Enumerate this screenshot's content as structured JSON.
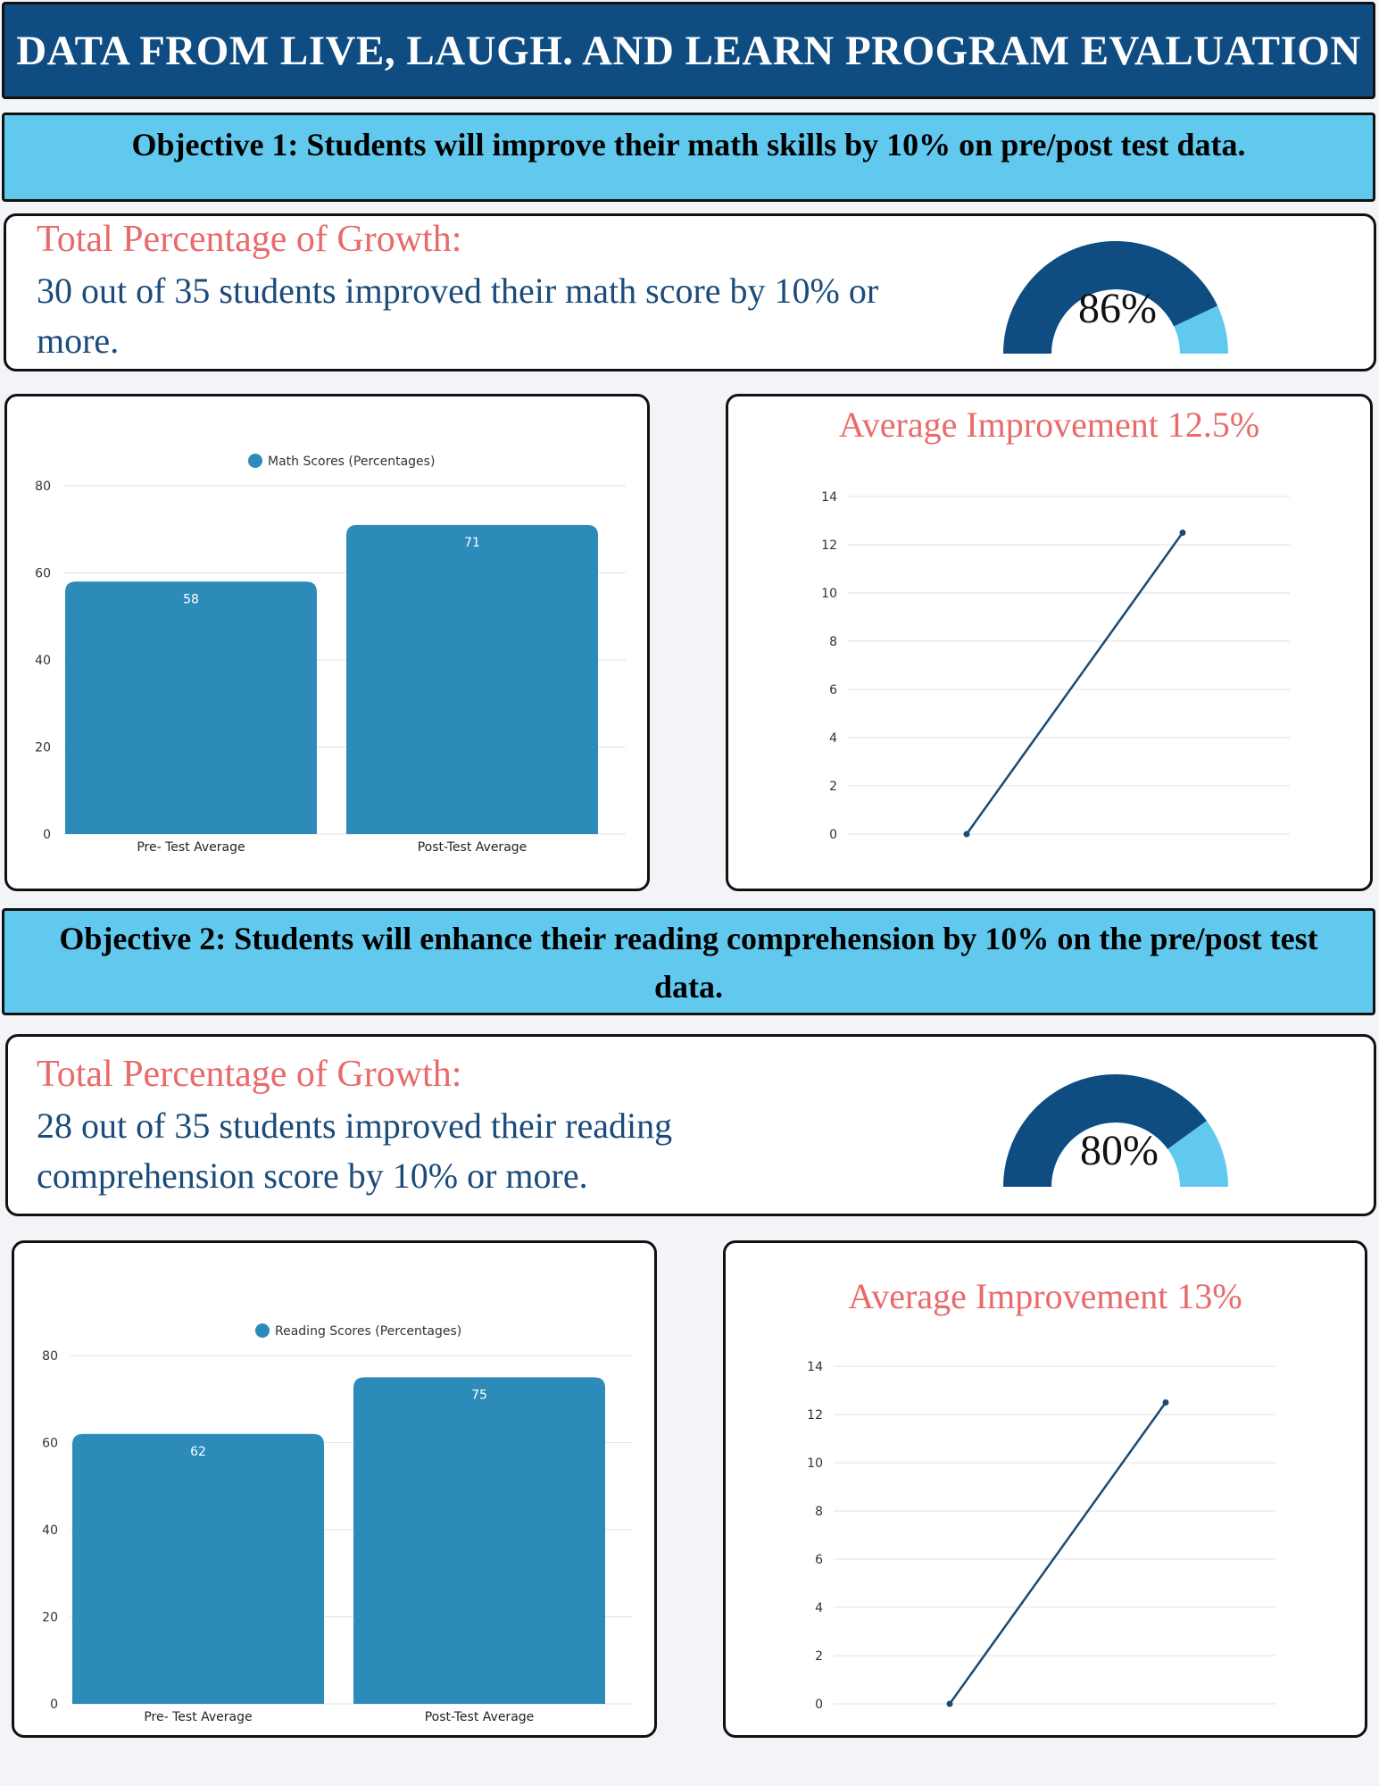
{
  "header": {
    "title": "DATA FROM LIVE, LAUGH. AND LEARN PROGRAM EVALUATION"
  },
  "sections": [
    {
      "objective": "Objective 1: Students will improve their math skills by 10% on pre/post test data.",
      "growth_title": "Total Percentage of Growth:",
      "growth_text": "30 out of 35 students improved their math score by 10% or more.",
      "gauge": {
        "label": "86%",
        "fraction": 0.86
      },
      "avg_title": "Average Improvement  12.5%"
    },
    {
      "objective": "Objective 2: Students will enhance their reading comprehension by 10% on the pre/post test data.",
      "growth_title": "Total Percentage of Growth:",
      "growth_text": "28 out of 35 students improved their reading comprehension score by 10% or more.",
      "gauge": {
        "label": "80%",
        "fraction": 0.8
      },
      "avg_title": "Average Improvement  13%"
    }
  ],
  "colors": {
    "primary": "#0f4c81",
    "accent": "#62c9ee",
    "bar": "#2d8bba",
    "line": "#1a4b78",
    "heading_red": "#e96a6b"
  },
  "chart_data": [
    {
      "type": "bar",
      "title": "",
      "legend": "Math Scores (Percentages)",
      "categories": [
        "Pre- Test Average",
        "Post-Test Average"
      ],
      "values": [
        58,
        71
      ],
      "data_labels": [
        "58",
        "71"
      ],
      "y_ticks": [
        "0",
        "20",
        "40",
        "60",
        "80"
      ],
      "ylim": [
        0,
        80
      ],
      "grid": true,
      "legend_position": "top"
    },
    {
      "type": "line",
      "title": "Average Improvement  12.5%",
      "x": [
        0,
        1
      ],
      "values": [
        0,
        12.5
      ],
      "y_ticks": [
        "0",
        "2",
        "4",
        "6",
        "8",
        "10",
        "12",
        "14"
      ],
      "ylim": [
        0,
        14
      ],
      "grid": true
    },
    {
      "type": "bar",
      "title": "",
      "legend": "Reading Scores (Percentages)",
      "categories": [
        "Pre- Test Average",
        "Post-Test Average"
      ],
      "values": [
        62,
        75
      ],
      "data_labels": [
        "62",
        "75"
      ],
      "y_ticks": [
        "0",
        "20",
        "40",
        "60",
        "80"
      ],
      "ylim": [
        0,
        80
      ],
      "grid": true,
      "legend_position": "top"
    },
    {
      "type": "line",
      "title": "Average Improvement  13%",
      "x": [
        0,
        1
      ],
      "values": [
        0,
        12.5
      ],
      "y_ticks": [
        "0",
        "2",
        "4",
        "6",
        "8",
        "10",
        "12",
        "14"
      ],
      "ylim": [
        0,
        14
      ],
      "grid": true
    }
  ]
}
